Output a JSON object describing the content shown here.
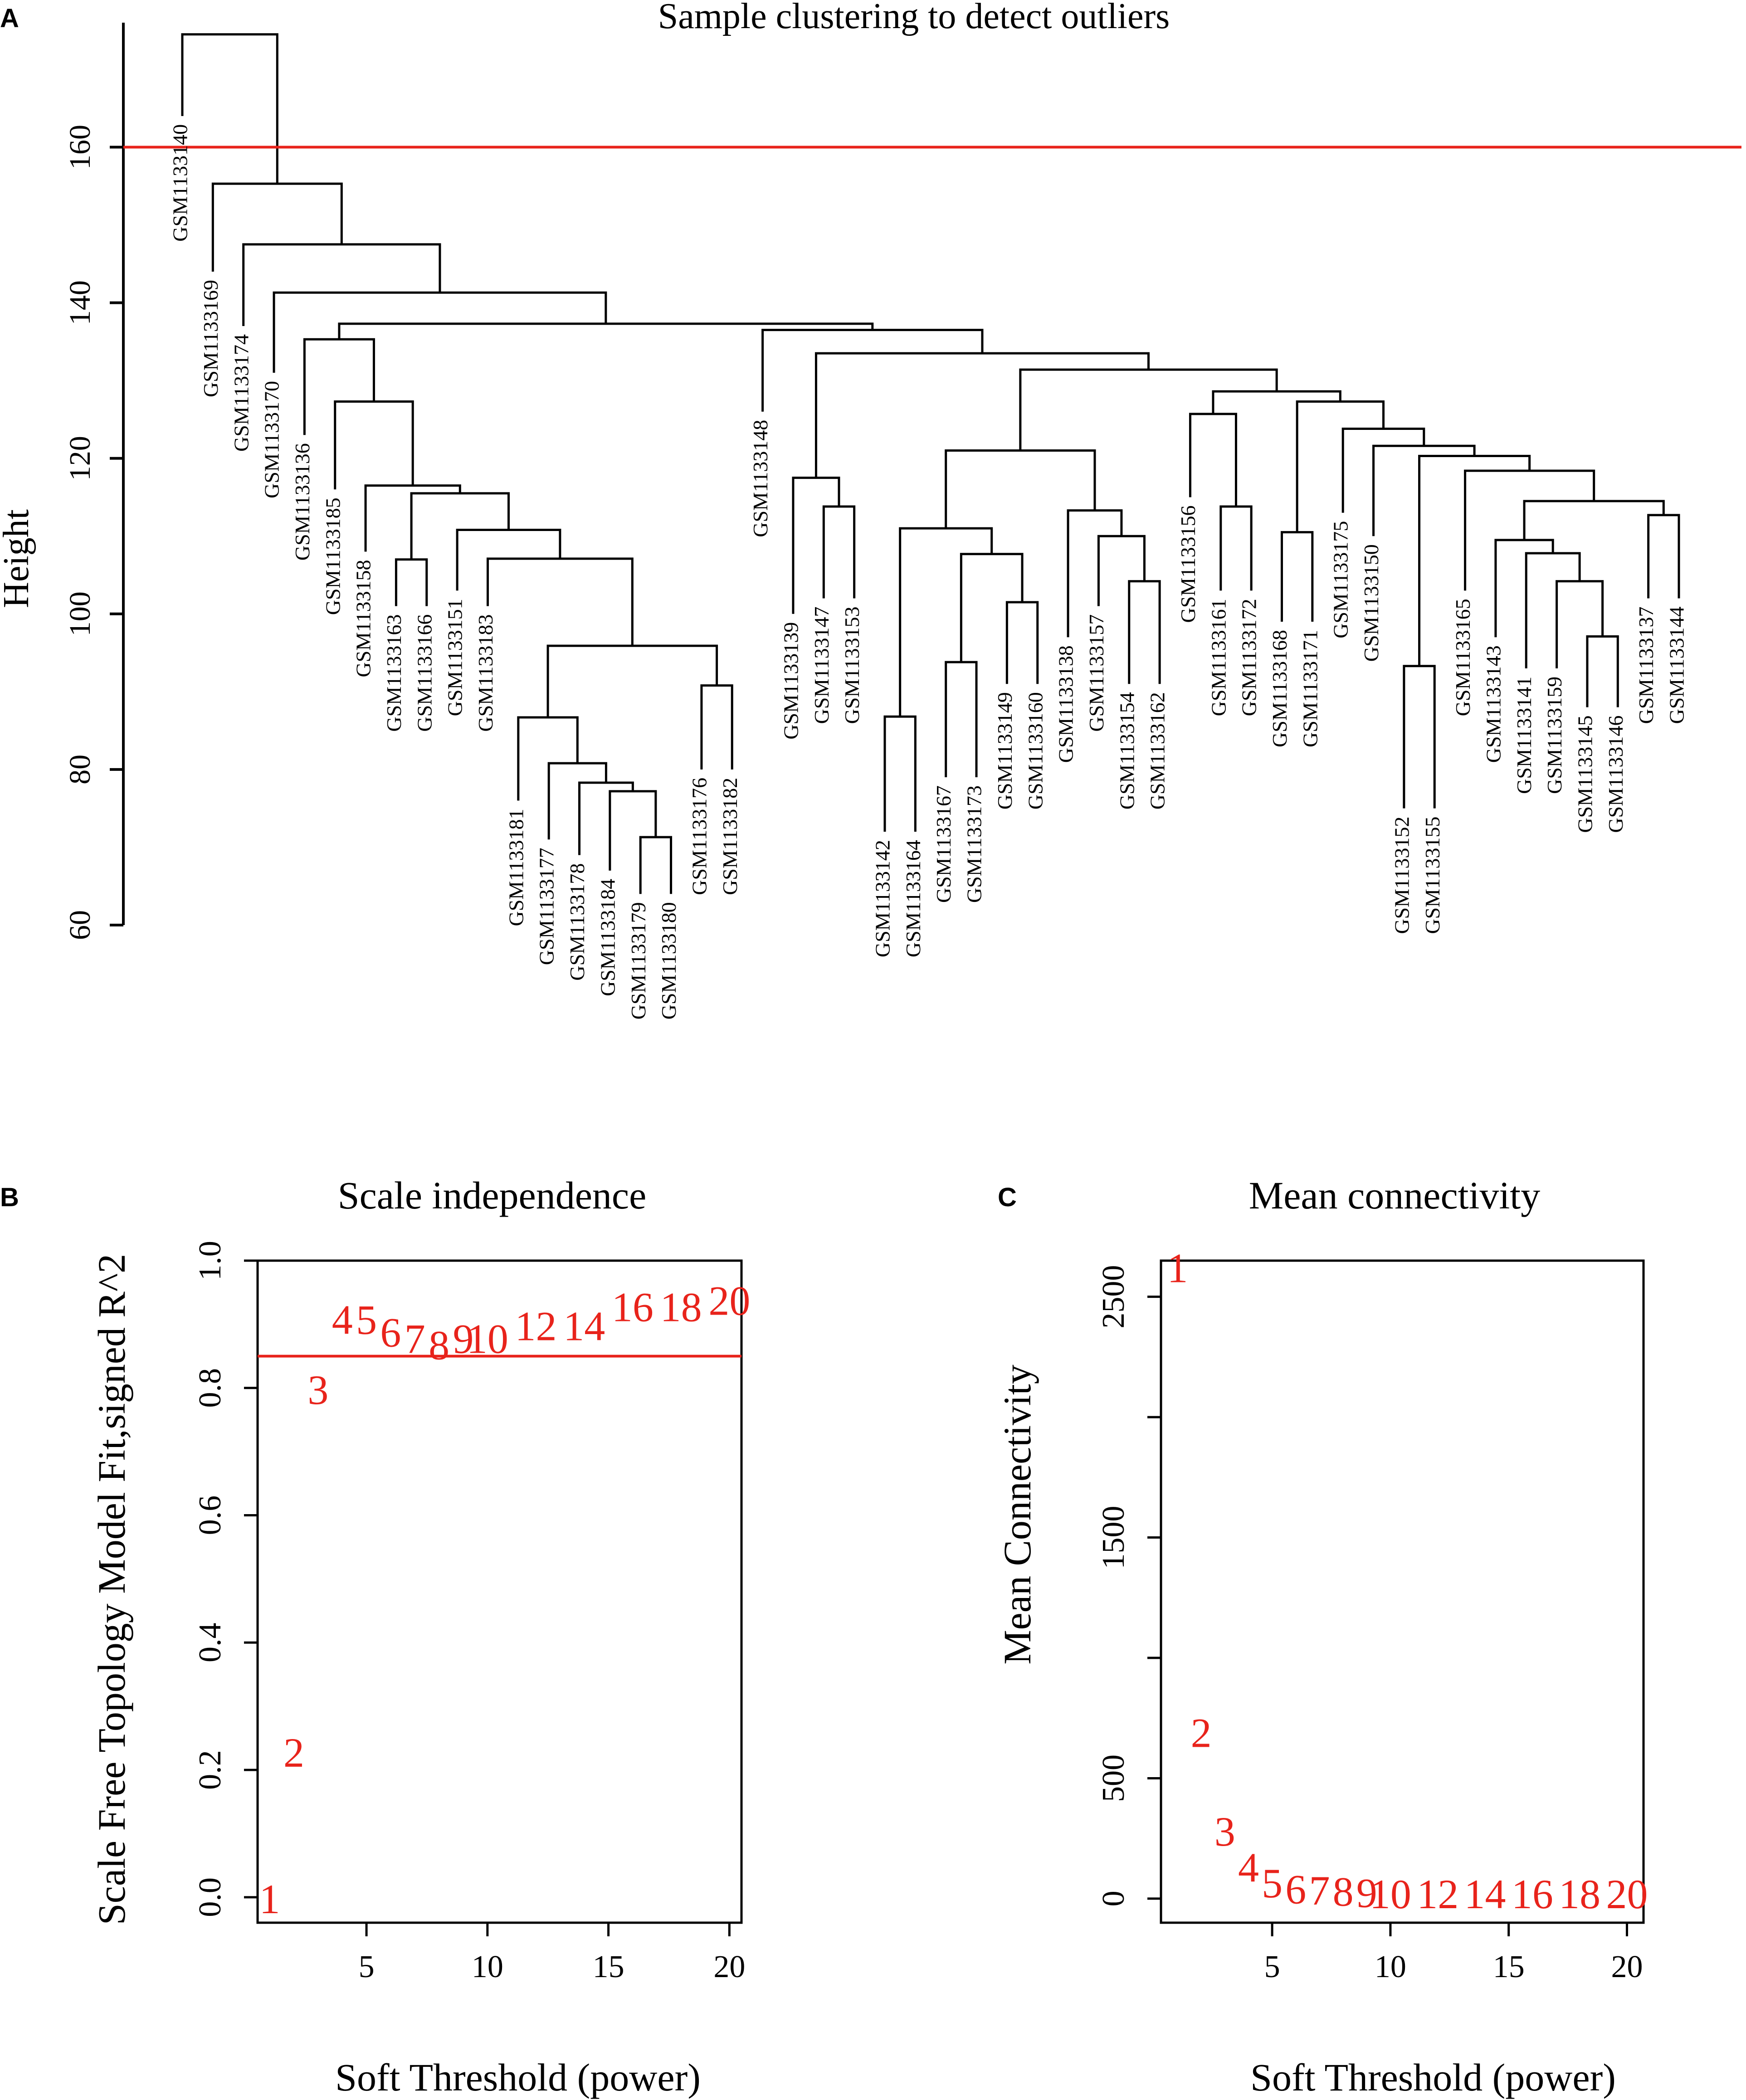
{
  "panel_labels": {
    "a": "A",
    "b": "B",
    "c": "C"
  },
  "colors": {
    "line": "#000000",
    "accent": "#e8231b"
  },
  "chart_data": [
    {
      "id": "A",
      "type": "dendrogram",
      "title": "Sample clustering to detect outliers",
      "ylabel": "Height",
      "ylim": [
        60,
        176
      ],
      "yticks": [
        60,
        80,
        100,
        120,
        140,
        160
      ],
      "cut_height": 160,
      "leaves": [
        "GSM1133140",
        "GSM1133169",
        "GSM1133174",
        "GSM1133170",
        "GSM1133136",
        "GSM1133185",
        "GSM1133158",
        "GSM1133163",
        "GSM1133166",
        "GSM1133151",
        "GSM1133183",
        "GSM1133181",
        "GSM1133177",
        "GSM1133178",
        "GSM1133184",
        "GSM1133179",
        "GSM1133180",
        "GSM1133176",
        "GSM1133182",
        "GSM1133148",
        "GSM1133139",
        "GSM1133147",
        "GSM1133153",
        "GSM1133142",
        "GSM1133164",
        "GSM1133167",
        "GSM1133173",
        "GSM1133149",
        "GSM1133160",
        "GSM1133138",
        "GSM1133157",
        "GSM1133154",
        "GSM1133162",
        "GSM1133156",
        "GSM1133161",
        "GSM1133172",
        "GSM1133168",
        "GSM1133171",
        "GSM1133175",
        "GSM1133150",
        "GSM1133152",
        "GSM1133155",
        "GSM1133165",
        "GSM1133143",
        "GSM1133141",
        "GSM1133159",
        "GSM1133145",
        "GSM1133146",
        "GSM1133137",
        "GSM1133144"
      ],
      "leaf_heights": [
        164,
        144,
        137,
        131,
        123,
        116,
        108,
        101,
        101,
        103,
        101,
        76,
        71,
        69,
        67,
        64,
        64,
        80,
        80,
        126,
        100,
        102,
        102,
        72,
        72,
        79,
        79,
        91,
        91,
        97,
        101,
        91,
        91,
        115,
        103,
        103,
        99,
        99,
        113,
        110,
        75,
        75,
        103,
        97,
        93,
        93,
        88,
        88,
        102,
        102
      ],
      "merges": [
        [
          -16,
          -17,
          71.3
        ],
        [
          -15,
          1,
          77.2
        ],
        [
          -14,
          2,
          78.3
        ],
        [
          -13,
          3,
          80.8
        ],
        [
          -12,
          4,
          86.7
        ],
        [
          -18,
          -19,
          90.8
        ],
        [
          5,
          6,
          95.9
        ],
        [
          -11,
          7,
          107.1
        ],
        [
          -10,
          8,
          110.8
        ],
        [
          -8,
          -9,
          107
        ],
        [
          9,
          10,
          115.5
        ],
        [
          -7,
          11,
          116.5
        ],
        [
          -6,
          12,
          127.3
        ],
        [
          -5,
          13,
          135.3
        ],
        [
          -22,
          -23,
          113.8
        ],
        [
          -21,
          15,
          117.5
        ],
        [
          -24,
          -25,
          86.8
        ],
        [
          -26,
          -27,
          93.8
        ],
        [
          -28,
          -29,
          101.5
        ],
        [
          18,
          19,
          107.7
        ],
        [
          17,
          20,
          111
        ],
        [
          -32,
          -33,
          104.2
        ],
        [
          -31,
          22,
          110
        ],
        [
          -30,
          23,
          113.3
        ],
        [
          21,
          24,
          121
        ],
        [
          -35,
          -36,
          113.8
        ],
        [
          -34,
          26,
          125.7
        ],
        [
          -37,
          -38,
          110.5
        ],
        [
          -41,
          -42,
          93.3
        ],
        [
          -47,
          -48,
          97.1
        ],
        [
          -46,
          30,
          104.2
        ],
        [
          -45,
          31,
          107.8
        ],
        [
          -44,
          32,
          109.5
        ],
        [
          -49,
          -50,
          112.7
        ],
        [
          33,
          34,
          114.5
        ],
        [
          -43,
          35,
          118.4
        ],
        [
          36,
          29,
          120.3
        ],
        [
          -40,
          37,
          121.6
        ],
        [
          -39,
          38,
          123.8
        ],
        [
          28,
          39,
          127.3
        ],
        [
          27,
          40,
          128.6
        ],
        [
          25,
          41,
          131.4
        ],
        [
          16,
          42,
          133.5
        ],
        [
          -20,
          43,
          136.5
        ],
        [
          14,
          44,
          137.3
        ],
        [
          -4,
          45,
          141.3
        ],
        [
          -3,
          46,
          147.5
        ],
        [
          -2,
          47,
          155.3
        ],
        [
          -1,
          48,
          174.5
        ]
      ]
    },
    {
      "id": "B",
      "type": "scatter",
      "title": "Scale independence",
      "xlabel": "Soft Threshold (power)",
      "ylabel": "Scale Free Topology Model Fit,signed R^2",
      "xlim": [
        0.5,
        20.5
      ],
      "ylim": [
        -0.04,
        1.0
      ],
      "xticks": [
        5,
        10,
        15,
        20
      ],
      "yticks": [
        0.0,
        0.2,
        0.4,
        0.6,
        0.8,
        1.0
      ],
      "threshold": 0.85,
      "powers": [
        1,
        2,
        3,
        4,
        5,
        6,
        7,
        8,
        9,
        10,
        12,
        14,
        16,
        18,
        20
      ],
      "labels": [
        "1",
        "2",
        "3",
        "4",
        "5",
        "6",
        "7",
        "8",
        "9",
        "10",
        "12",
        "14",
        "16",
        "18",
        "20"
      ],
      "values": [
        -0.01,
        0.22,
        0.79,
        0.9,
        0.9,
        0.88,
        0.87,
        0.86,
        0.87,
        0.87,
        0.89,
        0.89,
        0.92,
        0.92,
        0.93
      ]
    },
    {
      "id": "C",
      "type": "scatter",
      "title": "Mean connectivity",
      "xlabel": "Soft Threshold (power)",
      "ylabel": "Mean Connectivity",
      "xlim": [
        0.3,
        20.7
      ],
      "ylim": [
        -100,
        2650
      ],
      "xticks": [
        5,
        10,
        15,
        20
      ],
      "yticks": [
        0,
        500,
        1000,
        1500,
        2000,
        2500
      ],
      "ytick_labels": [
        "0",
        "500",
        "",
        "1500",
        "",
        "2500"
      ],
      "powers": [
        1,
        2,
        3,
        4,
        5,
        6,
        7,
        8,
        9,
        10,
        12,
        14,
        16,
        18,
        20
      ],
      "labels": [
        "1",
        "2",
        "3",
        "4",
        "5",
        "6",
        "7",
        "8",
        "9",
        "10",
        "12",
        "14",
        "16",
        "18",
        "20"
      ],
      "values": [
        2600,
        670,
        260,
        110,
        45,
        20,
        15,
        10,
        5,
        0,
        0,
        0,
        0,
        0,
        0
      ]
    }
  ]
}
